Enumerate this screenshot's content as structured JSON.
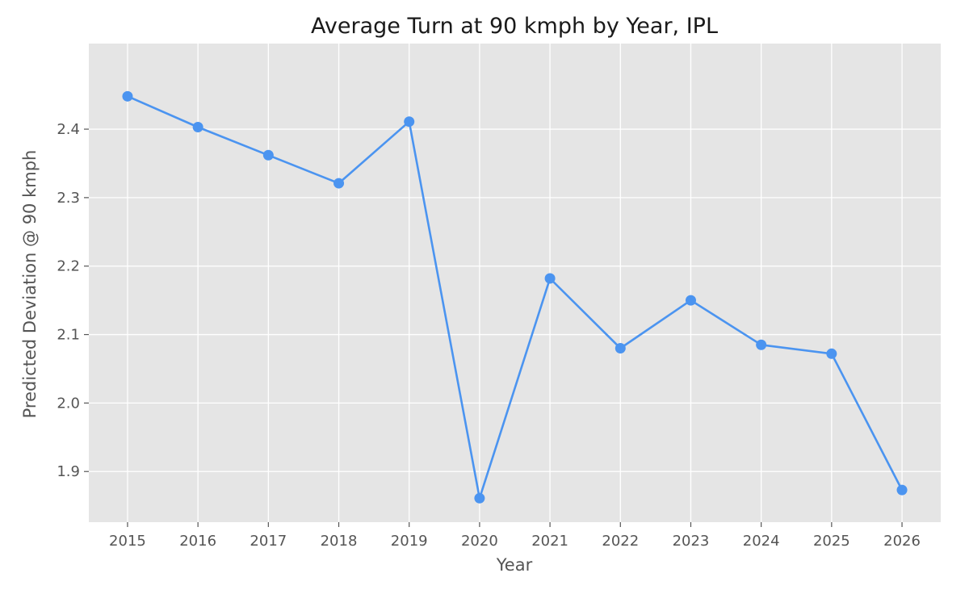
{
  "chart_data": {
    "type": "line",
    "title": "Average Turn at 90 kmph by Year, IPL",
    "xlabel": "Year",
    "ylabel": "Predicted Deviation @ 90 kmph",
    "x": [
      2015,
      2016,
      2017,
      2018,
      2019,
      2020,
      2021,
      2022,
      2023,
      2024,
      2025,
      2026
    ],
    "series": [
      {
        "values": [
          2.448,
          2.403,
          2.362,
          2.321,
          2.411,
          1.861,
          2.182,
          2.08,
          2.15,
          2.085,
          2.072,
          1.873
        ]
      }
    ],
    "xlim": [
      2014.45,
      2026.55
    ],
    "ylim": [
      1.826,
      2.525
    ],
    "yticks": [
      1.9,
      2.0,
      2.1,
      2.2,
      2.3,
      2.4
    ],
    "ytick_labels": [
      "1.9",
      "2.0",
      "2.1",
      "2.2",
      "2.3",
      "2.4"
    ],
    "xtick_labels": [
      "2015",
      "2016",
      "2017",
      "2018",
      "2019",
      "2020",
      "2021",
      "2022",
      "2023",
      "2024",
      "2025",
      "2026"
    ],
    "grid": true,
    "legend": "none",
    "colors": {
      "line": "#4b94f0",
      "background": "#e5e5e5"
    }
  }
}
